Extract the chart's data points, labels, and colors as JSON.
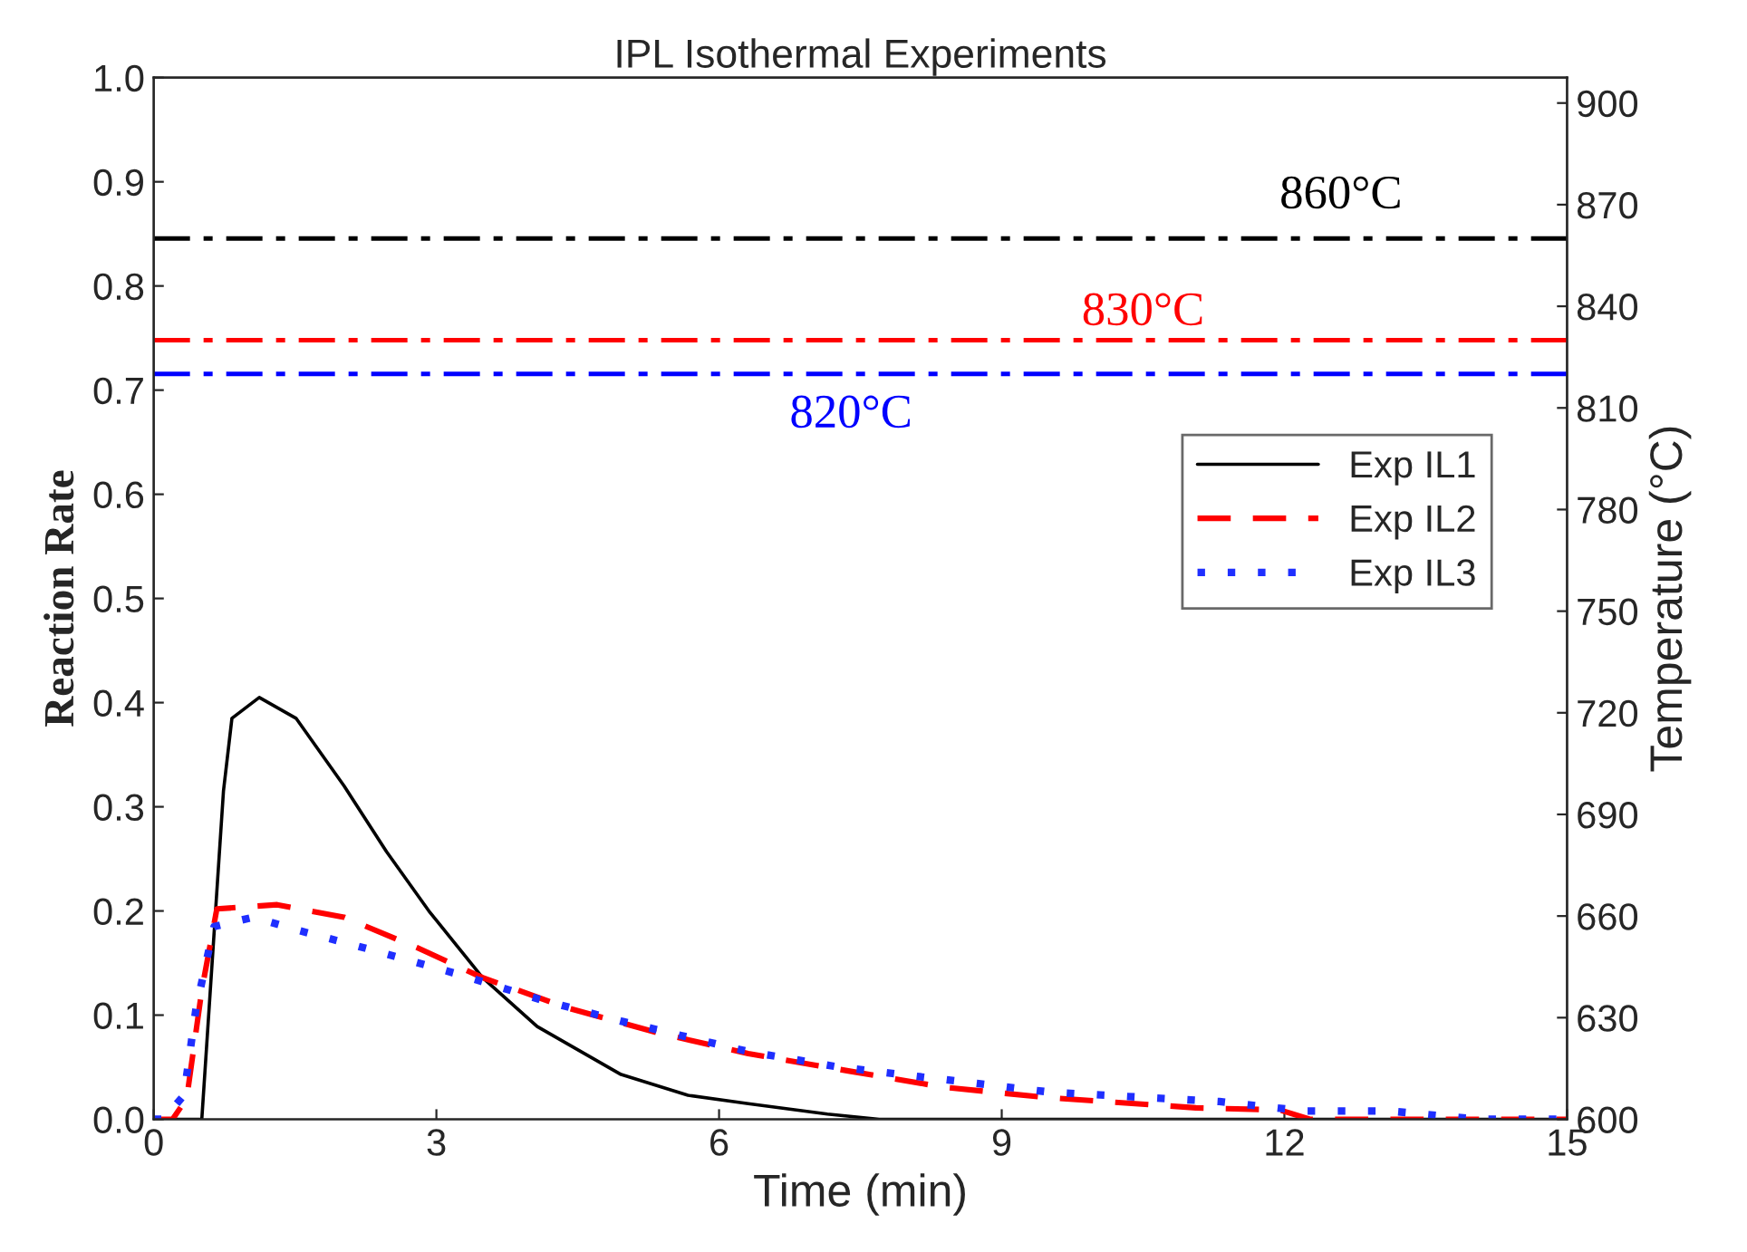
{
  "chart_data": {
    "type": "line",
    "title": "IPL Isothermal Experiments",
    "xlabel": "Time (min)",
    "ylabel": "Reaction Rate",
    "y2label": "Temperature (°C)",
    "xlim": [
      0,
      15
    ],
    "xticks": [
      0,
      3,
      6,
      9,
      12,
      15
    ],
    "ylim": [
      0,
      1
    ],
    "yticks": [
      {
        "value": 0,
        "label": "0.0"
      },
      {
        "value": 0.1,
        "label": "0.1"
      },
      {
        "value": 0.2,
        "label": "0.2"
      },
      {
        "value": 0.3,
        "label": "0.3"
      },
      {
        "value": 0.4,
        "label": "0.4"
      },
      {
        "value": 0.5,
        "label": "0.5"
      },
      {
        "value": 0.6,
        "label": "0.6"
      },
      {
        "value": 0.7,
        "label": "0.7"
      },
      {
        "value": 0.8,
        "label": "0.8"
      },
      {
        "value": 0.9,
        "label": "0.9"
      },
      {
        "value": 1,
        "label": "1.0"
      }
    ],
    "y2lim": [
      600,
      907.5
    ],
    "y2ticks": [
      600,
      630,
      660,
      690,
      720,
      750,
      780,
      810,
      840,
      870,
      900
    ],
    "grid": false,
    "legend": "top right",
    "series": [
      {
        "name": "Exp IL1",
        "color": "#000000",
        "line_style": "solid",
        "x": [
          0,
          0.51,
          0.74,
          0.83,
          1.12,
          1.51,
          2.02,
          2.47,
          2.92,
          3.49,
          4.07,
          4.96,
          5.67,
          6.31,
          7.15,
          7.7,
          15
        ],
        "values": [
          0,
          0,
          0.315,
          0.385,
          0.405,
          0.385,
          0.32,
          0.257,
          0.2,
          0.136,
          0.089,
          0.043,
          0.023,
          0.015,
          0.005,
          0,
          0
        ]
      },
      {
        "name": "Exp IL2",
        "color": "#ff0000",
        "line_style": "dashed",
        "x": [
          0,
          0.2,
          0.35,
          0.51,
          0.67,
          1.31,
          2.02,
          2.79,
          3.49,
          4.39,
          5.35,
          6.31,
          7.4,
          8.37,
          9.46,
          11.06,
          11.95,
          12.27,
          15
        ],
        "values": [
          0,
          0,
          0.02,
          0.124,
          0.202,
          0.206,
          0.194,
          0.165,
          0.136,
          0.107,
          0.083,
          0.063,
          0.046,
          0.031,
          0.021,
          0.011,
          0.009,
          0,
          0
        ]
      },
      {
        "name": "Exp IL3",
        "color": "#1f2fff",
        "line_style": "dotted",
        "x": [
          0,
          0.1,
          0.32,
          0.45,
          0.64,
          1.06,
          1.51,
          2.34,
          3.24,
          4.1,
          4.97,
          6.31,
          7.28,
          8.59,
          9.52,
          11.31,
          12.21,
          13.11,
          14.07,
          15
        ],
        "values": [
          0,
          0,
          0.023,
          0.107,
          0.185,
          0.194,
          0.182,
          0.162,
          0.139,
          0.115,
          0.094,
          0.065,
          0.05,
          0.036,
          0.026,
          0.017,
          0.008,
          0.008,
          0,
          0
        ]
      }
    ],
    "ref_lines": [
      {
        "axis": "y2",
        "value": 860,
        "label": "860°C",
        "color": "#000000",
        "line_style": "dashdot"
      },
      {
        "axis": "y2",
        "value": 830,
        "label": "830°C",
        "color": "#ff0000",
        "line_style": "dashdot"
      },
      {
        "axis": "y2",
        "value": 820,
        "label": "820°C",
        "color": "#0000ff",
        "line_style": "dashdot"
      }
    ]
  }
}
